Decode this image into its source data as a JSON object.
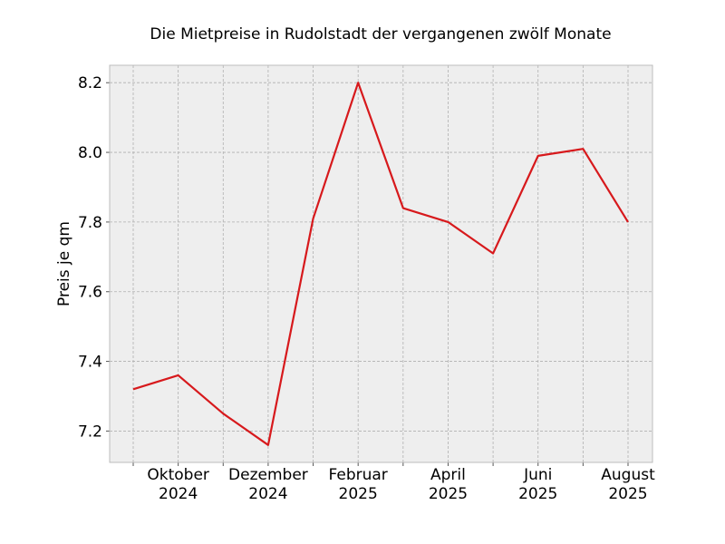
{
  "chart_data": {
    "type": "line",
    "title": "Die Mietpreise in Rudolstadt der vergangenen zwölf Monate",
    "xlabel": "",
    "ylabel": "Preis je qm",
    "x": [
      "2024-09",
      "2024-10",
      "2024-11",
      "2024-12",
      "2025-01",
      "2025-02",
      "2025-03",
      "2025-04",
      "2025-05",
      "2025-06",
      "2025-07",
      "2025-08"
    ],
    "series": [
      {
        "values": [
          7.32,
          7.36,
          7.25,
          7.16,
          7.81,
          8.2,
          7.84,
          7.8,
          7.71,
          7.99,
          8.01,
          7.8
        ],
        "color": "#d7191c"
      }
    ],
    "ylim": [
      7.11,
      8.25
    ],
    "yticks": [
      7.2,
      7.4,
      7.6,
      7.8,
      8.0,
      8.2
    ],
    "ytick_labels": [
      "7.2",
      "7.4",
      "7.6",
      "7.8",
      "8.0",
      "8.2"
    ],
    "xtick_labels": [
      {
        "x": "2024-10",
        "line1": "Oktober",
        "line2": "2024"
      },
      {
        "x": "2024-12",
        "line1": "Dezember",
        "line2": "2024"
      },
      {
        "x": "2025-02",
        "line1": "Februar",
        "line2": "2025"
      },
      {
        "x": "2025-04",
        "line1": "April",
        "line2": "2025"
      },
      {
        "x": "2025-06",
        "line1": "Juni",
        "line2": "2025"
      },
      {
        "x": "2025-08",
        "line1": "August",
        "line2": "2025"
      }
    ],
    "grid": true,
    "background_color": "#eeeeee"
  }
}
